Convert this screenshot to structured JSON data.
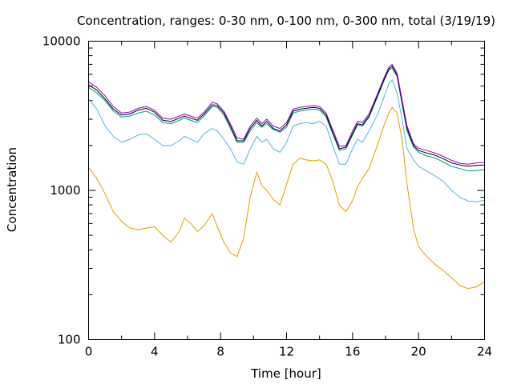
{
  "chart_data": {
    "type": "line",
    "title": "Concentration, ranges: 0-30 nm, 0-100 nm, 0-300 nm, total (3/19/19)",
    "xlabel": "Time [hour]",
    "ylabel": "Concentration",
    "xlim": [
      0,
      24
    ],
    "ylim": [
      100,
      10000
    ],
    "yscale": "log",
    "grid": false,
    "legend": "none",
    "xticks": [
      0,
      4,
      8,
      12,
      16,
      20,
      24
    ],
    "xtick_labels": [
      "0",
      "4",
      "8",
      "12",
      "16",
      "20",
      "24"
    ],
    "yticks": [
      100,
      1000,
      10000
    ],
    "ytick_labels": [
      "100",
      "1000",
      "10000"
    ],
    "series": [
      {
        "color": "#e69f00",
        "x": [
          0,
          0.5,
          1,
          1.5,
          2,
          2.5,
          3,
          3.5,
          4,
          4.5,
          5,
          5.5,
          5.8,
          6.2,
          6.6,
          7,
          7.5,
          7.8,
          8.2,
          8.6,
          9,
          9.4,
          9.8,
          10.2,
          10.5,
          10.8,
          11.2,
          11.6,
          12,
          12.4,
          12.8,
          13.2,
          13.6,
          14,
          14.4,
          14.8,
          15.2,
          15.6,
          16,
          16.3,
          16.6,
          17,
          17.5,
          17.9,
          18.2,
          18.4,
          18.7,
          19,
          19.3,
          19.7,
          20,
          20.5,
          21,
          21.5,
          22,
          22.5,
          23,
          23.5,
          24
        ],
        "y": [
          1430,
          1200,
          950,
          720,
          620,
          560,
          545,
          560,
          570,
          500,
          450,
          530,
          650,
          600,
          530,
          580,
          700,
          570,
          450,
          380,
          360,
          480,
          900,
          1330,
          1080,
          1000,
          870,
          800,
          1100,
          1500,
          1640,
          1600,
          1580,
          1600,
          1500,
          1150,
          800,
          720,
          850,
          1060,
          1200,
          1400,
          2000,
          2700,
          3300,
          3600,
          3300,
          2200,
          1100,
          550,
          420,
          360,
          320,
          290,
          260,
          230,
          220,
          225,
          245
        ]
      },
      {
        "color": "#56b4e9",
        "x": [
          0,
          0.5,
          1,
          1.5,
          2,
          2.5,
          3,
          3.5,
          4,
          4.5,
          5,
          5.5,
          5.8,
          6.2,
          6.6,
          7,
          7.5,
          7.8,
          8.2,
          8.6,
          9,
          9.4,
          9.8,
          10.2,
          10.5,
          10.8,
          11.2,
          11.6,
          12,
          12.4,
          12.8,
          13.2,
          13.6,
          14,
          14.4,
          14.8,
          15.2,
          15.6,
          16,
          16.3,
          16.6,
          17,
          17.5,
          17.9,
          18.2,
          18.4,
          18.7,
          19,
          19.3,
          19.7,
          20,
          20.5,
          21,
          21.5,
          22,
          22.5,
          23,
          23.5,
          24
        ],
        "y": [
          4100,
          3500,
          2700,
          2300,
          2100,
          2200,
          2350,
          2400,
          2200,
          2000,
          2000,
          2150,
          2300,
          2200,
          2100,
          2400,
          2600,
          2500,
          2200,
          1900,
          1550,
          1500,
          1900,
          2300,
          2100,
          2200,
          1900,
          1800,
          2100,
          2700,
          2800,
          2850,
          2800,
          2900,
          2700,
          2000,
          1500,
          1500,
          1900,
          2200,
          2100,
          2500,
          3200,
          4200,
          5200,
          5500,
          4500,
          3000,
          1900,
          1600,
          1450,
          1350,
          1250,
          1150,
          1000,
          900,
          850,
          840,
          860
        ]
      },
      {
        "color": "#009e73",
        "x": [
          0,
          0.5,
          1,
          1.5,
          2,
          2.5,
          3,
          3.5,
          4,
          4.5,
          5,
          5.5,
          5.8,
          6.2,
          6.6,
          7,
          7.5,
          7.8,
          8.2,
          8.6,
          9,
          9.4,
          9.8,
          10.2,
          10.5,
          10.8,
          11.2,
          11.6,
          12,
          12.4,
          12.8,
          13.2,
          13.6,
          14,
          14.4,
          14.8,
          15.2,
          15.6,
          16,
          16.3,
          16.6,
          17,
          17.5,
          17.9,
          18.2,
          18.4,
          18.7,
          19,
          19.3,
          19.7,
          20,
          20.5,
          21,
          21.5,
          22,
          22.5,
          23,
          23.5,
          24
        ],
        "y": [
          4900,
          4500,
          4000,
          3400,
          3100,
          3150,
          3300,
          3400,
          3200,
          2850,
          2800,
          2950,
          3050,
          2950,
          2850,
          3150,
          3650,
          3600,
          3200,
          2600,
          2100,
          2100,
          2500,
          2850,
          2650,
          2800,
          2550,
          2450,
          2650,
          3300,
          3400,
          3450,
          3500,
          3450,
          3100,
          2400,
          1850,
          1900,
          2350,
          2750,
          2700,
          3100,
          4200,
          5400,
          6400,
          6600,
          5800,
          3800,
          2500,
          1950,
          1800,
          1700,
          1650,
          1550,
          1450,
          1400,
          1350,
          1360,
          1380
        ]
      },
      {
        "color": "#000000",
        "x": [
          0,
          0.5,
          1,
          1.5,
          2,
          2.5,
          3,
          3.5,
          4,
          4.5,
          5,
          5.5,
          5.8,
          6.2,
          6.6,
          7,
          7.5,
          7.8,
          8.2,
          8.6,
          9,
          9.4,
          9.8,
          10.2,
          10.5,
          10.8,
          11.2,
          11.6,
          12,
          12.4,
          12.8,
          13.2,
          13.6,
          14,
          14.4,
          14.8,
          15.2,
          15.6,
          16,
          16.3,
          16.6,
          17,
          17.5,
          17.9,
          18.2,
          18.4,
          18.7,
          19,
          19.3,
          19.7,
          20,
          20.5,
          21,
          21.5,
          22,
          22.5,
          23,
          23.5,
          24
        ],
        "y": [
          5100,
          4700,
          4100,
          3500,
          3200,
          3250,
          3450,
          3550,
          3350,
          2950,
          2900,
          3050,
          3150,
          3050,
          2950,
          3250,
          3750,
          3700,
          3300,
          2700,
          2150,
          2150,
          2600,
          2950,
          2700,
          2900,
          2600,
          2500,
          2750,
          3400,
          3500,
          3550,
          3600,
          3550,
          3200,
          2450,
          1900,
          1950,
          2400,
          2800,
          2750,
          3150,
          4300,
          5500,
          6500,
          6800,
          5900,
          3900,
          2600,
          2000,
          1850,
          1780,
          1720,
          1630,
          1530,
          1480,
          1450,
          1470,
          1480
        ]
      },
      {
        "color": "#9400d3",
        "x": [
          0,
          0.5,
          1,
          1.5,
          2,
          2.5,
          3,
          3.5,
          4,
          4.5,
          5,
          5.5,
          5.8,
          6.2,
          6.6,
          7,
          7.5,
          7.8,
          8.2,
          8.6,
          9,
          9.4,
          9.8,
          10.2,
          10.5,
          10.8,
          11.2,
          11.6,
          12,
          12.4,
          12.8,
          13.2,
          13.6,
          14,
          14.4,
          14.8,
          15.2,
          15.6,
          16,
          16.3,
          16.6,
          17,
          17.5,
          17.9,
          18.2,
          18.4,
          18.7,
          19,
          19.3,
          19.7,
          20,
          20.5,
          21,
          21.5,
          22,
          22.5,
          23,
          23.5,
          24
        ],
        "y": [
          5350,
          4900,
          4300,
          3650,
          3300,
          3350,
          3550,
          3650,
          3450,
          3050,
          3000,
          3150,
          3250,
          3150,
          3050,
          3350,
          3900,
          3800,
          3400,
          2800,
          2250,
          2200,
          2700,
          3050,
          2800,
          3000,
          2700,
          2600,
          2850,
          3500,
          3600,
          3650,
          3700,
          3650,
          3300,
          2550,
          1980,
          2000,
          2500,
          2900,
          2850,
          3250,
          4400,
          5650,
          6700,
          7000,
          6100,
          4050,
          2700,
          2050,
          1920,
          1850,
          1780,
          1690,
          1590,
          1520,
          1500,
          1530,
          1540
        ]
      }
    ]
  }
}
